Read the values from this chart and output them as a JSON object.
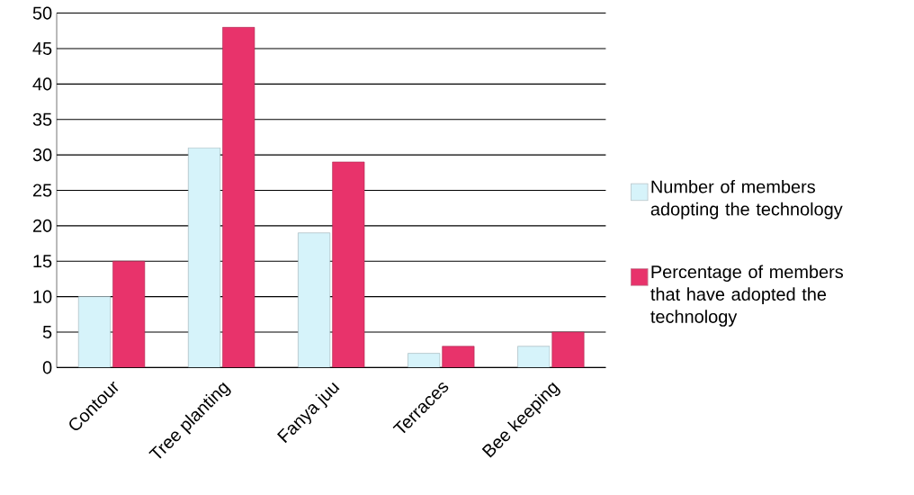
{
  "chart_data": {
    "type": "bar",
    "categories": [
      "Contour",
      "Tree planting",
      "Fanya juu",
      "Terraces",
      "Bee keeping"
    ],
    "series": [
      {
        "name": "Number of members adopting the technology",
        "color": "#d6f3fa",
        "values": [
          10,
          31,
          19,
          2,
          3
        ]
      },
      {
        "name": "Percentage of members that have adopted the technology",
        "color": "#e8336b",
        "values": [
          15,
          48,
          29,
          3,
          5
        ]
      }
    ],
    "ylim": [
      0,
      50
    ],
    "yticks": [
      0,
      5,
      10,
      15,
      20,
      25,
      30,
      35,
      40,
      45,
      50
    ],
    "grid": "y",
    "legend": "right"
  }
}
